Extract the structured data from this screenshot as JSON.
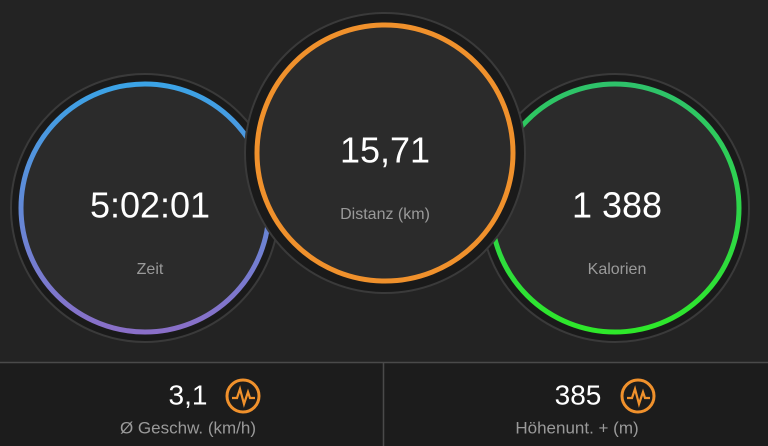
{
  "circles": [
    {
      "value": "5:02:01",
      "label": "Zeit"
    },
    {
      "value": "15,71",
      "label": "Distanz (km)"
    },
    {
      "value": "1 388",
      "label": "Kalorien"
    }
  ],
  "stats": [
    {
      "value": "3,1",
      "label": "Ø Geschw. (km/h)"
    },
    {
      "value": "385",
      "label": "Höhenunt. + (m)"
    }
  ]
}
